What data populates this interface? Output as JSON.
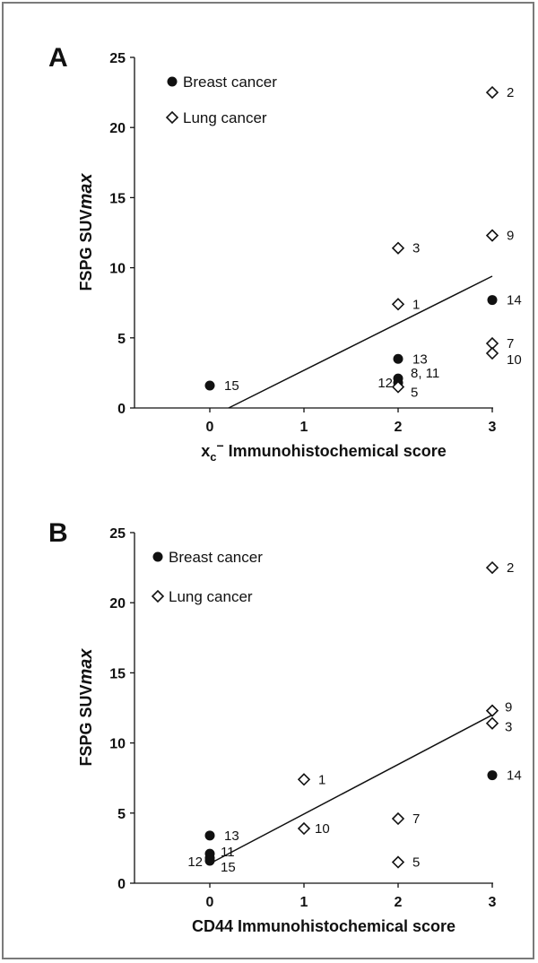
{
  "chart_data": [
    {
      "panel": "A",
      "type": "scatter",
      "xlabel_main": "x",
      "xlabel_sub": "c",
      "xlabel_sup": "−",
      "xlabel_rest": " Immunohistochemical score",
      "ylabel_main": "FSPG SUV",
      "ylabel_italic": "max",
      "xlim": [
        -0.75,
        3.9
      ],
      "ylim": [
        0,
        25
      ],
      "xticks": [
        0,
        1,
        2,
        3
      ],
      "yticks": [
        0,
        5,
        10,
        15,
        20,
        25
      ],
      "legend": [
        {
          "label": "Breast cancer",
          "marker": "filled-circle"
        },
        {
          "label": "Lung cancer",
          "marker": "open-diamond"
        }
      ],
      "points": [
        {
          "x": 0,
          "y": 1.6,
          "marker": "filled-circle",
          "label": "15"
        },
        {
          "x": 2,
          "y": 3.5,
          "marker": "filled-circle",
          "label": "13"
        },
        {
          "x": 2,
          "y": 2.1,
          "marker": "filled-circle",
          "label": "8, 11"
        },
        {
          "x": 2,
          "y": 1.8,
          "marker": "filled-circle",
          "label": "12"
        },
        {
          "x": 2,
          "y": 1.5,
          "marker": "open-diamond",
          "label": "5"
        },
        {
          "x": 2,
          "y": 7.4,
          "marker": "open-diamond",
          "label": "1"
        },
        {
          "x": 2,
          "y": 11.4,
          "marker": "open-diamond",
          "label": "3"
        },
        {
          "x": 3,
          "y": 22.5,
          "marker": "open-diamond",
          "label": "2"
        },
        {
          "x": 3,
          "y": 12.3,
          "marker": "open-diamond",
          "label": "9"
        },
        {
          "x": 3,
          "y": 7.7,
          "marker": "filled-circle",
          "label": "14"
        },
        {
          "x": 3,
          "y": 4.6,
          "marker": "open-diamond",
          "label": "7"
        },
        {
          "x": 3,
          "y": 3.9,
          "marker": "open-diamond",
          "label": "10"
        }
      ],
      "trendline": {
        "x": [
          0.2,
          3.0
        ],
        "y": [
          0.0,
          9.4
        ]
      },
      "grid": false
    },
    {
      "panel": "B",
      "type": "scatter",
      "xlabel_main": "CD44 Immunohistochemical score",
      "ylabel_main": "FSPG SUV",
      "ylabel_italic": "max",
      "xlim": [
        -0.75,
        3.9
      ],
      "ylim": [
        0,
        25
      ],
      "xticks": [
        0,
        1,
        2,
        3
      ],
      "yticks": [
        0,
        5,
        10,
        15,
        20,
        25
      ],
      "legend": [
        {
          "label": "Breast cancer",
          "marker": "filled-circle"
        },
        {
          "label": "Lung cancer",
          "marker": "open-diamond"
        }
      ],
      "points": [
        {
          "x": 0,
          "y": 3.4,
          "marker": "filled-circle",
          "label": "13"
        },
        {
          "x": 0,
          "y": 2.1,
          "marker": "filled-circle",
          "label": "11"
        },
        {
          "x": 0,
          "y": 1.8,
          "marker": "filled-circle",
          "label": "12"
        },
        {
          "x": 0,
          "y": 1.6,
          "marker": "filled-circle",
          "label": "15"
        },
        {
          "x": 1,
          "y": 7.4,
          "marker": "open-diamond",
          "label": "1"
        },
        {
          "x": 1,
          "y": 3.9,
          "marker": "open-diamond",
          "label": "10"
        },
        {
          "x": 2,
          "y": 4.6,
          "marker": "open-diamond",
          "label": "7"
        },
        {
          "x": 2,
          "y": 1.5,
          "marker": "open-diamond",
          "label": "5"
        },
        {
          "x": 3,
          "y": 22.5,
          "marker": "open-diamond",
          "label": "2"
        },
        {
          "x": 3,
          "y": 12.3,
          "marker": "open-diamond",
          "label": "9"
        },
        {
          "x": 3,
          "y": 11.4,
          "marker": "open-diamond",
          "label": "3"
        },
        {
          "x": 3,
          "y": 7.7,
          "marker": "filled-circle",
          "label": "14"
        }
      ],
      "trendline": {
        "x": [
          0.0,
          3.0
        ],
        "y": [
          1.4,
          12.0
        ]
      },
      "grid": false
    }
  ],
  "colors": {
    "frame": "#7a7a7a",
    "ink": "#111111"
  }
}
